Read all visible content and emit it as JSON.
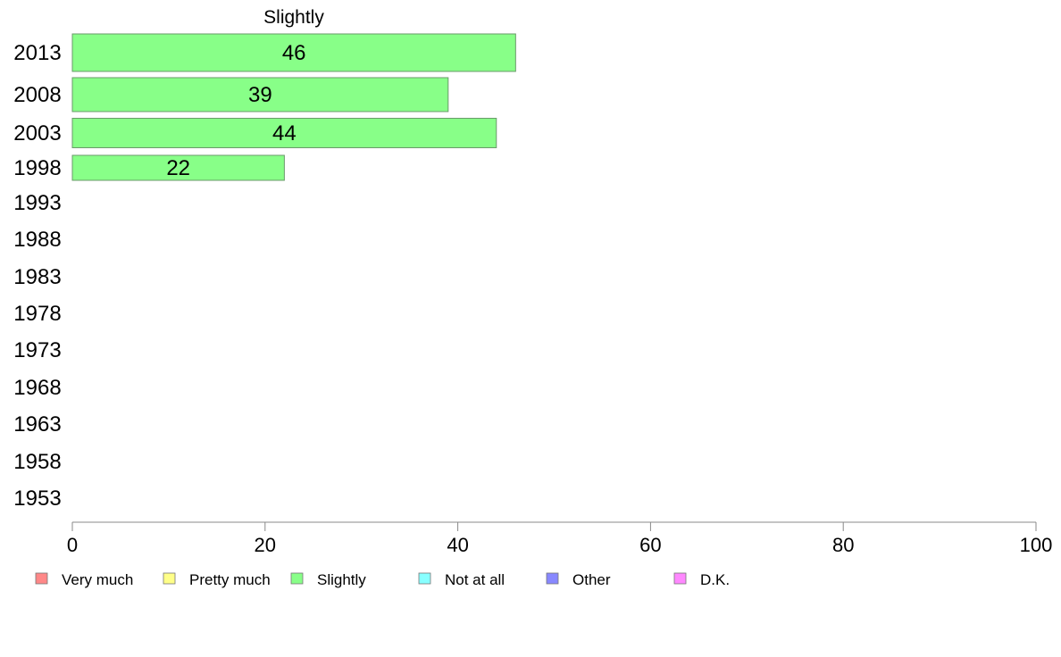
{
  "chart_data": {
    "type": "bar",
    "orientation": "horizontal",
    "panel_title": "Slightly",
    "categories": [
      "2013",
      "2008",
      "2003",
      "1998",
      "1993",
      "1988",
      "1983",
      "1978",
      "1973",
      "1968",
      "1963",
      "1958",
      "1953"
    ],
    "series": [
      {
        "name": "Slightly",
        "color": "#88ff88",
        "values": [
          46,
          39,
          44,
          22,
          null,
          null,
          null,
          null,
          null,
          null,
          null,
          null,
          null
        ]
      }
    ],
    "xlim": [
      0,
      100
    ],
    "xticks": [
      0,
      20,
      40,
      60,
      80,
      100
    ],
    "xlabel": "",
    "ylabel": "",
    "grid": false,
    "legend": {
      "placement": "bottom",
      "entries": [
        {
          "label": "Very much",
          "color": "#ff8888"
        },
        {
          "label": "Pretty much",
          "color": "#ffff88"
        },
        {
          "label": "Slightly",
          "color": "#88ff88"
        },
        {
          "label": "Not at all",
          "color": "#88ffff"
        },
        {
          "label": "Other",
          "color": "#8888ff"
        },
        {
          "label": "D.K.",
          "color": "#ff88ff"
        }
      ]
    }
  }
}
